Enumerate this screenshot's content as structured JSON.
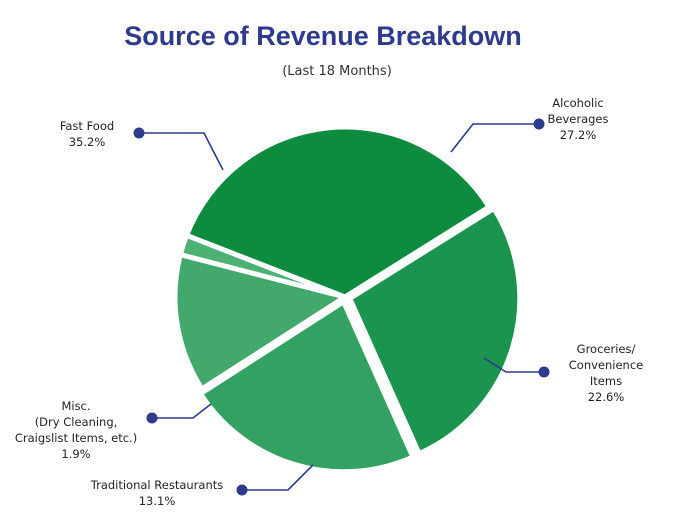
{
  "chart_data": {
    "type": "pie",
    "title": "Source of Revenue Breakdown",
    "subtitle": "(Last 18 Months)",
    "slices": [
      {
        "category": "Alcoholic Beverages",
        "label_lines": [
          "Alcoholic",
          "Beverages",
          "27.2%"
        ],
        "value": 27.2,
        "color": "#1b9450"
      },
      {
        "category": "Groceries/ Convenience Items",
        "label_lines": [
          "Groceries/",
          "Convenience",
          "Items",
          "22.6%"
        ],
        "value": 22.6,
        "color": "#33a162"
      },
      {
        "category": "Traditional Restaurants",
        "label_lines": [
          "Traditional Restaurants",
          "13.1%"
        ],
        "value": 13.1,
        "color": "#42a86c"
      },
      {
        "category": "Misc. (Dry Cleaning, Craigslist Items, etc.)",
        "label_lines": [
          "Misc.",
          "(Dry Cleaning,",
          "Craigslist Items, etc.)",
          "1.9%"
        ],
        "value": 1.9,
        "color": "#4db075"
      },
      {
        "category": "Fast Food",
        "label_lines": [
          "Fast Food",
          "35.2%"
        ],
        "value": 35.2,
        "color": "#0d8c3f"
      }
    ],
    "leader_color": "#2e3a8c"
  }
}
